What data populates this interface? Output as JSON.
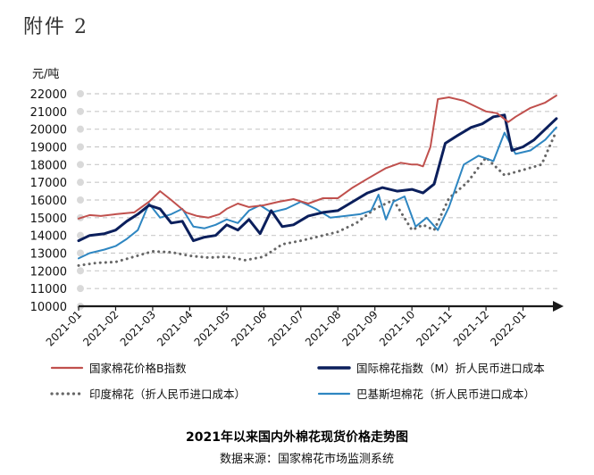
{
  "header": {
    "attachment_label": "附件 2"
  },
  "footer": {
    "title": "2021年以来国内外棉花现货价格走势图",
    "source": "数据来源：国家棉花市场监测系统"
  },
  "chart_data": {
    "type": "line",
    "title": "2021年以来国内外棉花现货价格走势图",
    "ylabel": "元/吨",
    "xlabel": "",
    "ylim": [
      10000,
      22000
    ],
    "yticks": [
      22000,
      21000,
      20000,
      19000,
      18000,
      17000,
      16000,
      15000,
      14000,
      13000,
      12000,
      11000,
      10000
    ],
    "xticks": [
      "2021-01",
      "2021-02",
      "2021-03",
      "2021-04",
      "2021-05",
      "2021-06",
      "2021-07",
      "2021-08",
      "2021-09",
      "2021-10",
      "2021-11",
      "2021-12",
      "2022-01"
    ],
    "grid": true,
    "legend_position": "bottom",
    "series": [
      {
        "name": "国家棉花价格B指数",
        "color": "#c0504d",
        "style": "solid",
        "x": [
          0,
          0.3,
          0.6,
          1,
          1.5,
          1.9,
          2.2,
          2.5,
          2.9,
          3.2,
          3.5,
          3.8,
          4,
          4.3,
          4.6,
          5,
          5.4,
          5.8,
          6.2,
          6.6,
          7,
          7.4,
          7.8,
          8.3,
          8.7,
          9,
          9.15,
          9.3,
          9.5,
          9.7,
          10,
          10.4,
          10.8,
          11,
          11.3,
          11.6,
          11.8,
          12.2,
          12.6,
          12.9
        ],
        "values": [
          14950,
          15150,
          15100,
          15200,
          15300,
          15900,
          16500,
          16000,
          15300,
          15100,
          15000,
          15200,
          15500,
          15800,
          15600,
          15700,
          15900,
          16050,
          15800,
          16100,
          16100,
          16700,
          17200,
          17800,
          18100,
          18000,
          18000,
          17900,
          19000,
          21700,
          21800,
          21600,
          21200,
          21000,
          20900,
          20400,
          20700,
          21200,
          21500,
          21900
        ]
      },
      {
        "name": "国际棉花指数（M）折人民币进口成本",
        "color": "#0b1f5c",
        "style": "solid",
        "x": [
          0,
          0.3,
          0.7,
          1,
          1.3,
          1.6,
          1.9,
          2.2,
          2.5,
          2.8,
          3.1,
          3.4,
          3.7,
          4,
          4.3,
          4.6,
          4.9,
          5.2,
          5.5,
          5.8,
          6.2,
          6.6,
          7,
          7.4,
          7.8,
          8.2,
          8.6,
          9,
          9.3,
          9.6,
          9.9,
          10.2,
          10.6,
          10.9,
          11.2,
          11.5,
          11.7,
          12,
          12.3,
          12.6,
          12.9
        ],
        "values": [
          13700,
          14000,
          14100,
          14300,
          14800,
          15200,
          15700,
          15500,
          14700,
          14800,
          13700,
          13900,
          14000,
          14600,
          14300,
          14900,
          14100,
          15400,
          14500,
          14600,
          15100,
          15300,
          15400,
          15900,
          16400,
          16700,
          16500,
          16600,
          16400,
          16900,
          19200,
          19600,
          20100,
          20300,
          20700,
          20800,
          18800,
          19000,
          19400,
          20000,
          20600
        ]
      },
      {
        "name": "印度棉花（折人民币进口成本）",
        "color": "#666666",
        "style": "dotted",
        "x": [
          0,
          0.5,
          1,
          1.5,
          2,
          2.5,
          3,
          3.5,
          4,
          4.5,
          5,
          5.5,
          6,
          6.5,
          7,
          7.5,
          8,
          8.5,
          9,
          9.3,
          9.6,
          10,
          10.5,
          11,
          11.5,
          12,
          12.5,
          12.9
        ],
        "values": [
          12300,
          12450,
          12500,
          12800,
          13100,
          13050,
          12850,
          12750,
          12800,
          12600,
          12800,
          13500,
          13700,
          13950,
          14200,
          14700,
          15500,
          16000,
          14300,
          14600,
          14300,
          16100,
          17000,
          18400,
          17400,
          17700,
          18000,
          19900
        ]
      },
      {
        "name": "巴基斯坦棉花（折人民币进口成本）",
        "color": "#2e86c1",
        "style": "solid",
        "x": [
          0,
          0.3,
          0.7,
          1,
          1.3,
          1.6,
          1.9,
          2.2,
          2.5,
          2.8,
          3.1,
          3.4,
          3.7,
          4,
          4.3,
          4.6,
          4.9,
          5.2,
          5.6,
          6,
          6.4,
          6.8,
          7.2,
          7.6,
          7.9,
          8.1,
          8.3,
          8.5,
          8.8,
          9.1,
          9.4,
          9.7,
          10,
          10.4,
          10.8,
          11.2,
          11.5,
          11.8,
          12.2,
          12.6,
          12.9
        ],
        "values": [
          12700,
          13000,
          13200,
          13400,
          13800,
          14300,
          15800,
          15000,
          15200,
          15500,
          14500,
          14400,
          14600,
          14900,
          14700,
          15400,
          15700,
          15300,
          15500,
          15900,
          15500,
          15000,
          15100,
          15200,
          15400,
          16300,
          14900,
          15900,
          16200,
          14500,
          15000,
          14300,
          15600,
          18000,
          18500,
          18200,
          19800,
          18600,
          18800,
          19400,
          20100
        ]
      }
    ]
  }
}
